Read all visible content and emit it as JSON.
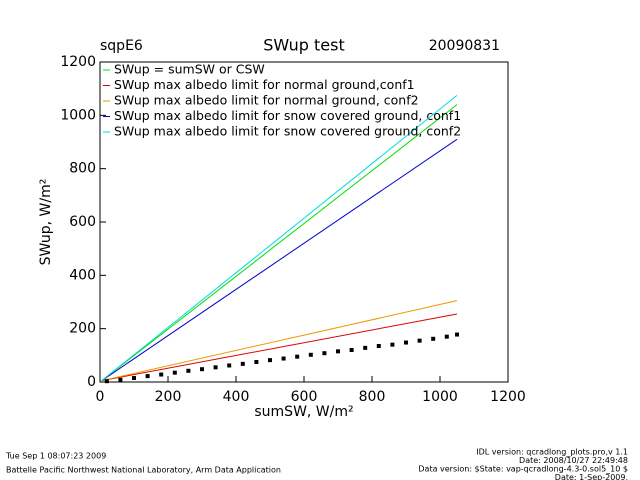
{
  "chart_data": {
    "type": "scatter",
    "site": "sqpE6",
    "title": "SWup test",
    "date": "20090831",
    "xlabel": "sumSW, W/m²",
    "ylabel": "SWup, W/m²",
    "xlim": [
      0,
      1200
    ],
    "ylim": [
      0,
      1200
    ],
    "xticks": [
      0,
      200,
      400,
      600,
      800,
      1000,
      1200
    ],
    "yticks": [
      0,
      200,
      400,
      600,
      800,
      1000,
      1200
    ],
    "series": [
      {
        "name": "SWup = sumSW or CSW",
        "color": "#00dd00",
        "mode": "line",
        "x": [
          5,
          1050
        ],
        "values": [
          5,
          1040
        ]
      },
      {
        "name": "SWup max albedo limit for normal ground,conf1",
        "color": "#dd0000",
        "mode": "line",
        "x": [
          5,
          1050
        ],
        "values": [
          5,
          255
        ]
      },
      {
        "name": "SWup max albedo limit for normal ground, conf2",
        "color": "#ee9900",
        "mode": "line",
        "x": [
          5,
          1050
        ],
        "values": [
          5,
          305
        ]
      },
      {
        "name": "SWup max albedo limit for snow covered ground, conf1",
        "color": "#0000cc",
        "mode": "line",
        "x": [
          5,
          1050
        ],
        "values": [
          5,
          910
        ]
      },
      {
        "name": "SWup max albedo limit for snow covered ground, conf2",
        "color": "#00dddd",
        "mode": "line",
        "x": [
          5,
          1050
        ],
        "values": [
          5,
          1075
        ]
      },
      {
        "color": "#000000",
        "mode": "markers",
        "x": [
          20,
          60,
          100,
          140,
          180,
          220,
          260,
          300,
          340,
          380,
          420,
          460,
          500,
          540,
          580,
          620,
          660,
          700,
          740,
          780,
          820,
          860,
          900,
          940,
          980,
          1020,
          1050
        ],
        "values": [
          3,
          8,
          15,
          22,
          28,
          35,
          42,
          48,
          55,
          62,
          68,
          75,
          82,
          88,
          95,
          102,
          108,
          115,
          120,
          128,
          135,
          140,
          148,
          155,
          162,
          170,
          178
        ]
      }
    ],
    "footer_left": [
      "Tue Sep  1 08:07:23 2009",
      "Battelle Pacific Northwest National Laboratory, Arm Data Application"
    ],
    "footer_right": [
      "IDL version: qcradlong_plots.pro,v 1.1",
      "Date: 2008/10/27 22:49:48",
      "Data version: $State: vap-qcradlong-4.3-0.sol5_10 $",
      "Date: 1-Sep-2009,"
    ]
  }
}
